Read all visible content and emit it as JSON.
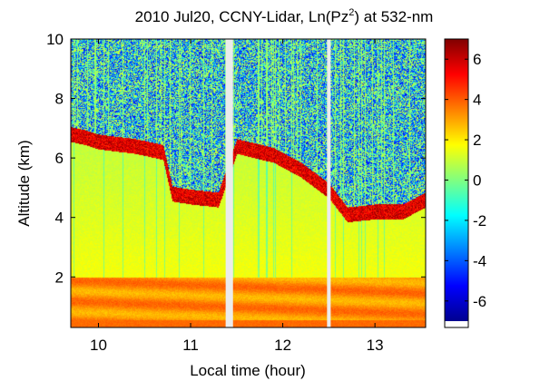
{
  "chart_data": {
    "type": "heatmap",
    "title_main": "2010 Jul20, CCNY-Lidar, Ln(Pz",
    "title_sup": "2",
    "title_tail": ") at 532-nm",
    "xlabel": "Local time (hour)",
    "ylabel": "Altitude (km)",
    "xlim": [
      9.7,
      13.55
    ],
    "ylim": [
      0.3,
      10
    ],
    "xticks": [
      10,
      11,
      12,
      13
    ],
    "xtick_labels": [
      "10",
      "11",
      "12",
      "13"
    ],
    "yticks": [
      2,
      4,
      6,
      8,
      10
    ],
    "ytick_labels": [
      "2",
      "4",
      "6",
      "8",
      "10"
    ],
    "colorbar": {
      "range": [
        -7,
        7
      ],
      "ticks": [
        6,
        4,
        2,
        0,
        -2,
        -4,
        -6
      ],
      "tick_labels": [
        "6",
        "4",
        "2",
        "0",
        "-2",
        "-4",
        "-6"
      ],
      "colormap": "jet"
    },
    "data_gaps_hours": [
      [
        11.38,
        11.46
      ],
      [
        12.48,
        12.52
      ]
    ],
    "features": {
      "boundary_layer_top_km": 2.0,
      "cloud_layer": [
        {
          "t": 9.7,
          "z": 6.7
        },
        {
          "t": 9.85,
          "z": 6.6
        },
        {
          "t": 10.0,
          "z": 6.45
        },
        {
          "t": 10.4,
          "z": 6.3
        },
        {
          "t": 10.7,
          "z": 6.1
        },
        {
          "t": 10.8,
          "z": 4.7
        },
        {
          "t": 11.0,
          "z": 4.6
        },
        {
          "t": 11.3,
          "z": 4.5
        },
        {
          "t": 11.5,
          "z": 6.3
        },
        {
          "t": 11.9,
          "z": 6.0
        },
        {
          "t": 12.2,
          "z": 5.5
        },
        {
          "t": 12.5,
          "z": 4.8
        },
        {
          "t": 12.7,
          "z": 4.0
        },
        {
          "t": 13.0,
          "z": 4.1
        },
        {
          "t": 13.3,
          "z": 4.1
        },
        {
          "t": 13.55,
          "z": 4.5
        }
      ]
    }
  }
}
